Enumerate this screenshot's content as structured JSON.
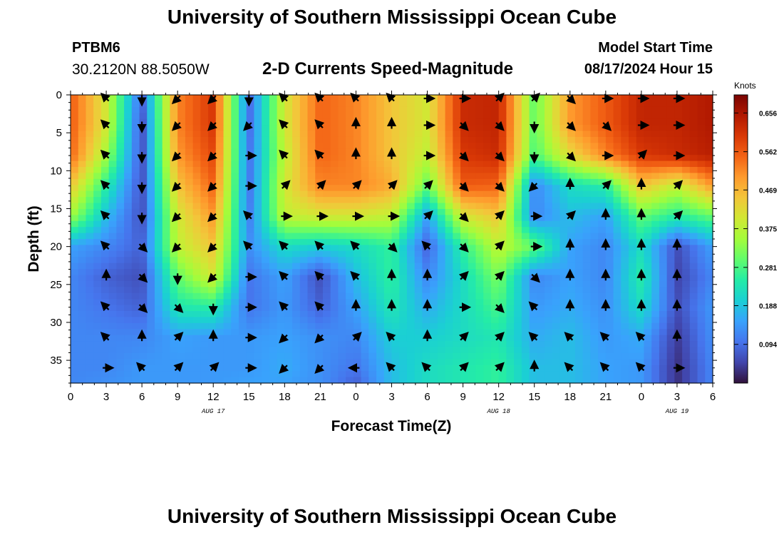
{
  "header": {
    "title": "University of Southern Mississippi Ocean Cube",
    "station": "PTBM6",
    "coords": "30.2120N  88.5050W",
    "subtitle": "2-D Currents Speed-Magnitude",
    "model_start_label": "Model Start Time",
    "model_start_value": "08/17/2024 Hour 15"
  },
  "footer": {
    "title": "University of Southern Mississippi Ocean Cube"
  },
  "chart_data": {
    "type": "heatmap",
    "title": "2-D Currents Speed-Magnitude",
    "xlabel": "Forecast Time(Z)",
    "ylabel": "Depth (ft)",
    "x_ticks": [
      "0",
      "3",
      "6",
      "9",
      "12",
      "15",
      "18",
      "21",
      "0",
      "3",
      "6",
      "9",
      "12",
      "15",
      "18",
      "21",
      "0",
      "3",
      "6"
    ],
    "x_range_hours": [
      0,
      54
    ],
    "date_labels": [
      {
        "text": "AUG 17",
        "hour": 12
      },
      {
        "text": "AUG 18",
        "hour": 36
      },
      {
        "text": "AUG 19",
        "hour": 51
      }
    ],
    "y_ticks": [
      0,
      5,
      10,
      15,
      20,
      25,
      30,
      35
    ],
    "ylim": [
      0,
      38
    ],
    "colorbar": {
      "label": "Knots",
      "ticks": [
        0.656,
        0.562,
        0.469,
        0.375,
        0.281,
        0.188,
        0.094
      ],
      "range": [
        0,
        0.7
      ],
      "colors": [
        "#30123b",
        "#4145ab",
        "#4675ed",
        "#39a2fc",
        "#1bcfd4",
        "#24eca6",
        "#61fc6c",
        "#a4fc3b",
        "#d1e834",
        "#f3c63a",
        "#fe9b2d",
        "#f36315",
        "#d93806",
        "#b11901",
        "#7a0403"
      ]
    },
    "speed_grid": {
      "hours": [
        0,
        3,
        6,
        9,
        12,
        15,
        18,
        21,
        24,
        27,
        30,
        33,
        36,
        39,
        42,
        45,
        48,
        51,
        54
      ],
      "depths_ft": [
        0,
        4,
        8,
        12,
        16,
        20,
        24,
        28,
        32,
        36,
        38
      ],
      "values_knots": [
        [
          0.56,
          0.4,
          0.08,
          0.52,
          0.6,
          0.09,
          0.4,
          0.55,
          0.52,
          0.45,
          0.4,
          0.62,
          0.63,
          0.3,
          0.5,
          0.56,
          0.63,
          0.63,
          0.65
        ],
        [
          0.56,
          0.4,
          0.06,
          0.52,
          0.6,
          0.09,
          0.4,
          0.55,
          0.52,
          0.45,
          0.4,
          0.62,
          0.63,
          0.3,
          0.5,
          0.56,
          0.63,
          0.63,
          0.65
        ],
        [
          0.55,
          0.35,
          0.06,
          0.5,
          0.58,
          0.1,
          0.38,
          0.55,
          0.52,
          0.45,
          0.38,
          0.6,
          0.62,
          0.28,
          0.42,
          0.52,
          0.6,
          0.62,
          0.64
        ],
        [
          0.45,
          0.25,
          0.06,
          0.45,
          0.55,
          0.1,
          0.4,
          0.52,
          0.52,
          0.48,
          0.3,
          0.56,
          0.55,
          0.12,
          0.22,
          0.25,
          0.45,
          0.38,
          0.5
        ],
        [
          0.35,
          0.18,
          0.06,
          0.4,
          0.5,
          0.11,
          0.38,
          0.4,
          0.4,
          0.38,
          0.15,
          0.4,
          0.45,
          0.12,
          0.18,
          0.15,
          0.3,
          0.25,
          0.3
        ],
        [
          0.15,
          0.12,
          0.08,
          0.38,
          0.45,
          0.13,
          0.22,
          0.2,
          0.22,
          0.26,
          0.08,
          0.26,
          0.38,
          0.3,
          0.15,
          0.12,
          0.22,
          0.06,
          0.15
        ],
        [
          0.12,
          0.08,
          0.06,
          0.3,
          0.4,
          0.1,
          0.15,
          0.06,
          0.18,
          0.26,
          0.12,
          0.22,
          0.32,
          0.12,
          0.15,
          0.12,
          0.25,
          0.05,
          0.12
        ],
        [
          0.12,
          0.1,
          0.08,
          0.24,
          0.25,
          0.1,
          0.14,
          0.08,
          0.15,
          0.24,
          0.16,
          0.22,
          0.28,
          0.14,
          0.16,
          0.13,
          0.22,
          0.06,
          0.14
        ],
        [
          0.12,
          0.12,
          0.12,
          0.15,
          0.14,
          0.14,
          0.15,
          0.13,
          0.12,
          0.2,
          0.2,
          0.22,
          0.24,
          0.16,
          0.18,
          0.14,
          0.16,
          0.04,
          0.13
        ],
        [
          0.12,
          0.12,
          0.14,
          0.14,
          0.14,
          0.14,
          0.16,
          0.13,
          0.1,
          0.18,
          0.22,
          0.24,
          0.26,
          0.18,
          0.18,
          0.15,
          0.14,
          0.03,
          0.12
        ],
        [
          0.12,
          0.13,
          0.14,
          0.14,
          0.14,
          0.15,
          0.15,
          0.13,
          0.08,
          0.18,
          0.22,
          0.24,
          0.26,
          0.18,
          0.18,
          0.15,
          0.14,
          0.03,
          0.12
        ]
      ]
    },
    "vectors": {
      "hours": [
        3,
        6,
        9,
        12,
        15,
        18,
        21,
        24,
        27,
        30,
        33,
        36,
        39,
        42,
        45,
        48,
        51
      ],
      "depths_ft": [
        0,
        4,
        8,
        12,
        16,
        20,
        24,
        28,
        32,
        36
      ],
      "directions_deg": [
        [
          315,
          180,
          225,
          225,
          180,
          315,
          315,
          315,
          315,
          90,
          90,
          45,
          45,
          135,
          90,
          90,
          90
        ],
        [
          315,
          180,
          225,
          225,
          225,
          315,
          315,
          0,
          0,
          90,
          135,
          135,
          180,
          135,
          135,
          90,
          90
        ],
        [
          315,
          180,
          225,
          225,
          90,
          315,
          315,
          0,
          0,
          90,
          135,
          135,
          180,
          135,
          90,
          45,
          90
        ],
        [
          315,
          180,
          225,
          225,
          90,
          45,
          45,
          45,
          45,
          45,
          135,
          135,
          225,
          0,
          45,
          0,
          45
        ],
        [
          315,
          180,
          225,
          225,
          315,
          90,
          90,
          90,
          90,
          45,
          135,
          45,
          90,
          45,
          0,
          0,
          45
        ],
        [
          315,
          135,
          225,
          225,
          315,
          315,
          315,
          315,
          135,
          315,
          135,
          45,
          90,
          0,
          0,
          0,
          0
        ],
        [
          0,
          135,
          180,
          225,
          90,
          315,
          315,
          315,
          0,
          0,
          45,
          45,
          135,
          0,
          0,
          0,
          0
        ],
        [
          315,
          135,
          135,
          180,
          90,
          315,
          315,
          0,
          0,
          0,
          90,
          135,
          315,
          0,
          0,
          0,
          0
        ],
        [
          315,
          0,
          45,
          0,
          90,
          225,
          225,
          45,
          315,
          0,
          45,
          45,
          315,
          315,
          315,
          315,
          0
        ],
        [
          90,
          315,
          45,
          45,
          90,
          225,
          225,
          270,
          315,
          315,
          45,
          45,
          0,
          315,
          315,
          315,
          90
        ]
      ]
    }
  }
}
